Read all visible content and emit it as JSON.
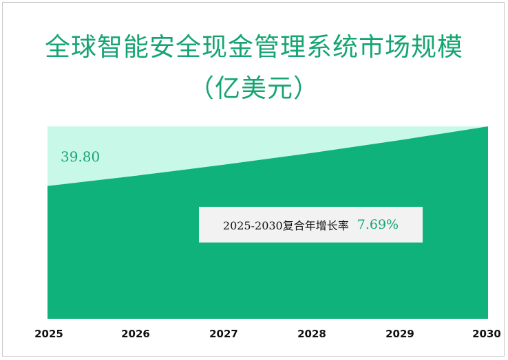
{
  "title_line1": "全球智能安全现金管理系统市场规模",
  "title_line2": "（亿美元）",
  "chart_data": {
    "type": "area",
    "title": "全球智能安全现金管理系统市场规模（亿美元）",
    "x": [
      "2025",
      "2026",
      "2027",
      "2028",
      "2029",
      "2030"
    ],
    "series": [
      {
        "values": [
          39.8,
          42.86,
          46.16,
          49.71,
          53.53,
          57.65
        ]
      }
    ],
    "ylim": [
      0,
      57.65
    ],
    "data_labels": {
      "first": "39.80"
    },
    "annotation": {
      "label": "2025-2030复合年增长率",
      "value": "7.69%"
    },
    "grid": false,
    "legend": "none",
    "colors": {
      "fill": "#10b27b",
      "background": "#c7f8e8",
      "text": "#16a572"
    }
  }
}
